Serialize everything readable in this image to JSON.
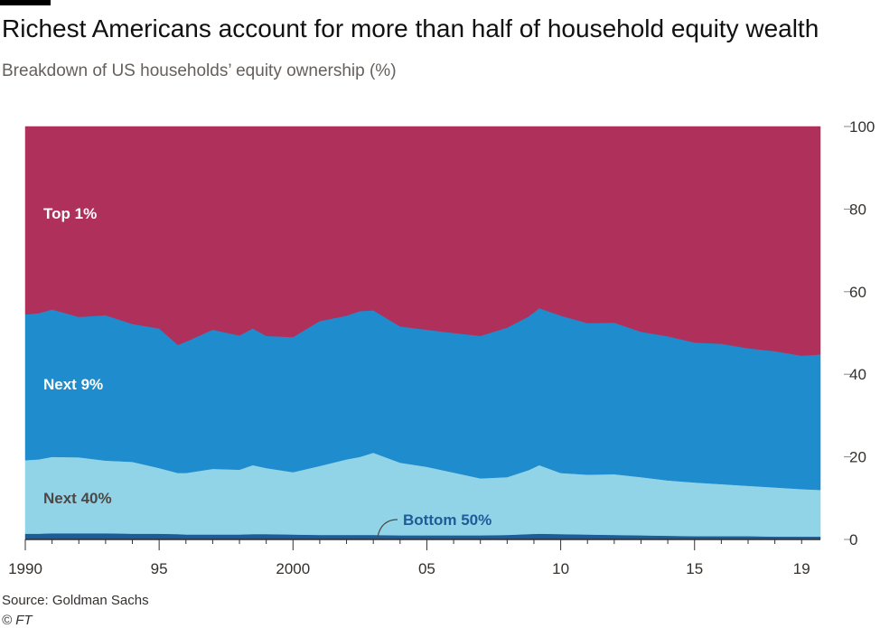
{
  "header": {
    "title": "Richest Americans account for more than half of household equity wealth",
    "subtitle": "Breakdown of US households’ equity ownership (%)"
  },
  "footer": {
    "source": "Source: Goldman Sachs",
    "credit": "© FT"
  },
  "colors": {
    "top1": "#b0305c",
    "next9": "#1f8ccd",
    "next40": "#91d4e8",
    "bottom50": "#1d5c96",
    "brand": "#000000"
  },
  "chart_data": {
    "type": "area",
    "stacked": true,
    "title": "Richest Americans account for more than half of household equity wealth",
    "subtitle": "Breakdown of US households’ equity ownership (%)",
    "ylim": [
      0,
      100
    ],
    "xlim": [
      1990,
      2019.7
    ],
    "yticks": [
      "100",
      "80",
      "60",
      "40",
      "20",
      "0"
    ],
    "xticks": [
      {
        "value": 1990,
        "label": "1990"
      },
      {
        "value": 1995,
        "label": "95"
      },
      {
        "value": 2000,
        "label": "2000"
      },
      {
        "value": 2005,
        "label": "05"
      },
      {
        "value": 2010,
        "label": "10"
      },
      {
        "value": 2015,
        "label": "15"
      },
      {
        "value": 2019,
        "label": "19"
      }
    ],
    "x": [
      1990,
      1990.5,
      1991,
      1992,
      1993,
      1994,
      1995,
      1995.7,
      1996,
      1997,
      1998,
      1998.5,
      1999,
      2000,
      2001,
      2002,
      2002.5,
      2003,
      2004,
      2005,
      2006,
      2007,
      2008,
      2008.8,
      2009.2,
      2010,
      2011,
      2012,
      2013,
      2014,
      2015,
      2016,
      2017,
      2018,
      2019,
      2019.7
    ],
    "series": [
      {
        "name": "Bottom 50%",
        "values": [
          1.4,
          1.4,
          1.5,
          1.5,
          1.5,
          1.4,
          1.4,
          1.3,
          1.2,
          1.2,
          1.2,
          1.3,
          1.3,
          1.2,
          1.1,
          1.1,
          1.1,
          1.1,
          1.0,
          1.0,
          1.0,
          1.0,
          1.1,
          1.3,
          1.4,
          1.3,
          1.2,
          1.1,
          1.0,
          0.9,
          0.8,
          0.8,
          0.8,
          0.7,
          0.7,
          0.7
        ]
      },
      {
        "name": "Next 40%",
        "values": [
          17.8,
          18.0,
          18.5,
          18.4,
          17.6,
          17.4,
          15.9,
          14.8,
          14.9,
          15.9,
          15.7,
          16.7,
          16.0,
          15.1,
          16.7,
          18.3,
          18.9,
          19.9,
          17.6,
          16.6,
          15.2,
          13.8,
          14.0,
          15.5,
          16.6,
          14.8,
          14.5,
          14.7,
          14.1,
          13.4,
          13.0,
          12.6,
          12.2,
          11.9,
          11.5,
          11.3
        ]
      },
      {
        "name": "Next 9%",
        "values": [
          35.3,
          35.4,
          35.7,
          34.0,
          35.2,
          33.4,
          33.8,
          31.0,
          31.8,
          33.7,
          32.5,
          33.1,
          32.0,
          32.7,
          35.1,
          34.8,
          35.3,
          34.5,
          33.0,
          33.2,
          33.8,
          34.5,
          36.2,
          37.2,
          38.0,
          38.1,
          36.7,
          36.7,
          35.2,
          34.9,
          33.9,
          34.0,
          33.3,
          33.0,
          32.3,
          32.8
        ]
      },
      {
        "name": "Top 1%",
        "values": [
          45.5,
          45.2,
          44.3,
          46.1,
          45.7,
          47.8,
          48.9,
          52.9,
          52.1,
          49.2,
          50.6,
          48.9,
          50.7,
          51.0,
          47.1,
          45.8,
          44.7,
          44.5,
          48.4,
          49.2,
          50.0,
          50.7,
          48.7,
          46.0,
          44.0,
          45.8,
          47.6,
          47.5,
          49.7,
          50.8,
          52.3,
          52.6,
          53.7,
          54.4,
          55.5,
          55.2
        ]
      }
    ],
    "labels": {
      "top1": "Top 1%",
      "next9": "Next 9%",
      "next40": "Next 40%",
      "bottom50": "Bottom 50%"
    }
  }
}
